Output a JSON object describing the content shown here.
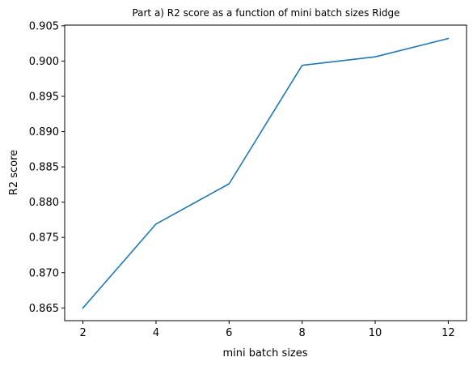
{
  "chart_data": {
    "type": "line",
    "title": "Part a) R2 score as a function of mini batch sizes Ridge",
    "xlabel": "mini batch sizes",
    "ylabel": "R2 score",
    "x": [
      2,
      4,
      6,
      8,
      10,
      12
    ],
    "series": [
      {
        "values": [
          0.865,
          0.8769,
          0.8826,
          0.8994,
          0.9006,
          0.9032
        ]
      }
    ],
    "xticks": [
      2,
      4,
      6,
      8,
      10,
      12
    ],
    "xtick_labels": [
      "2",
      "4",
      "6",
      "8",
      "10",
      "12"
    ],
    "yticks": [
      0.865,
      0.87,
      0.875,
      0.88,
      0.885,
      0.89,
      0.895,
      0.9,
      0.905
    ],
    "ytick_labels": [
      "0.865",
      "0.870",
      "0.875",
      "0.880",
      "0.885",
      "0.890",
      "0.895",
      "0.900",
      "0.905"
    ],
    "xlim": [
      1.5,
      12.5
    ],
    "ylim": [
      0.8632,
      0.9051
    ],
    "grid": false,
    "line_color": "#1f77b4"
  }
}
